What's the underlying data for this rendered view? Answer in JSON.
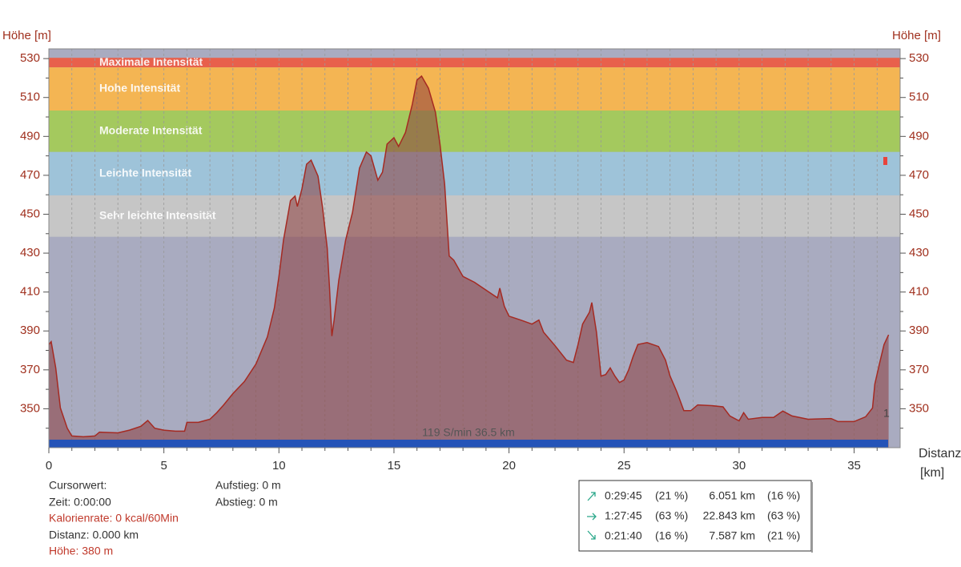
{
  "chart_data": {
    "type": "area",
    "ylabel": "Höhe [m]",
    "xlabel": "Distanz",
    "xunit": "[km]",
    "x": [
      0,
      0.1,
      0.3,
      0.5,
      0.8,
      1.0,
      1.5,
      2.0,
      2.2,
      3.0,
      3.5,
      4.0,
      4.3,
      4.6,
      5.0,
      5.5,
      5.9,
      6.0,
      6.5,
      7.0,
      7.3,
      7.6,
      8.0,
      8.5,
      9.0,
      9.5,
      9.8,
      10.0,
      10.2,
      10.5,
      10.7,
      10.8,
      11.0,
      11.2,
      11.4,
      11.7,
      11.9,
      12.1,
      12.2,
      12.3,
      12.4,
      12.6,
      12.9,
      13.2,
      13.5,
      13.8,
      14.0,
      14.3,
      14.5,
      14.7,
      15.0,
      15.2,
      15.5,
      15.8,
      16.0,
      16.2,
      16.5,
      16.8,
      17.0,
      17.2,
      17.4,
      17.6,
      18.0,
      18.5,
      19.0,
      19.5,
      19.6,
      19.8,
      20.0,
      20.5,
      21.0,
      21.3,
      21.5,
      22.0,
      22.5,
      22.8,
      23.0,
      23.2,
      23.5,
      23.6,
      23.8,
      24.0,
      24.2,
      24.4,
      24.6,
      24.8,
      25.0,
      25.2,
      25.4,
      25.6,
      26.0,
      26.5,
      26.8,
      27.0,
      27.3,
      27.6,
      27.9,
      28.2,
      28.8,
      29.3,
      29.6,
      30.0,
      30.2,
      30.4,
      31.0,
      31.5,
      31.9,
      32.3,
      33.0,
      34.0,
      34.3,
      35.0,
      35.5,
      35.8,
      35.9,
      36.1,
      36.3,
      36.5
    ],
    "values": [
      383,
      384.5,
      371,
      350.4,
      340,
      336,
      335.6,
      336,
      338,
      337.6,
      339,
      341,
      344,
      340,
      339,
      338.5,
      338.5,
      343,
      343,
      344.6,
      348,
      352,
      357.8,
      364,
      373,
      387,
      401.8,
      418,
      436.7,
      457,
      459.3,
      454,
      463,
      475.7,
      477.8,
      469.6,
      453,
      432.6,
      412,
      387.4,
      395.6,
      416,
      436.7,
      451,
      473.7,
      482,
      480,
      467.5,
      471.6,
      486,
      489.3,
      484.8,
      492,
      506.6,
      519,
      521,
      514.8,
      502.5,
      486,
      465.5,
      428.5,
      426.4,
      418,
      415,
      411,
      407,
      412,
      402.6,
      397.6,
      395.6,
      393.5,
      395.6,
      389.4,
      382.4,
      375,
      373.8,
      383,
      393.5,
      399.7,
      404.6,
      389.4,
      366.8,
      367.6,
      371,
      366.8,
      363.5,
      364.8,
      370,
      377,
      383,
      384,
      382,
      375,
      366.8,
      358.6,
      349,
      349,
      352,
      351.6,
      351,
      346.3,
      343.8,
      348,
      344.6,
      345.5,
      345.5,
      348.8,
      346.3,
      344.6,
      345,
      343.4,
      343.4,
      345.9,
      350.4,
      362.7,
      373,
      383,
      388
    ],
    "color": "#a52a22",
    "fill": "rgba(140,60,60,0.55)",
    "xlim": [
      0,
      37
    ],
    "xticks": [
      0,
      5,
      10,
      15,
      20,
      25,
      30,
      35
    ],
    "xminorticks": [
      1,
      2,
      3,
      4,
      6,
      7,
      8,
      9,
      11,
      12,
      13,
      14,
      16,
      17,
      18,
      19,
      21,
      22,
      23,
      24,
      26,
      27,
      28,
      29,
      31,
      32,
      33,
      34,
      36
    ],
    "ylim": [
      330,
      535
    ],
    "yticks": [
      350,
      370,
      390,
      410,
      430,
      450,
      470,
      490,
      510,
      530
    ],
    "yminorticks": [
      340,
      360,
      380,
      400,
      420,
      440,
      460,
      480,
      500,
      520
    ],
    "zones": [
      {
        "name": "Maximale Intensität",
        "from": 525.5,
        "to": 530.4,
        "color": "#e8604c"
      },
      {
        "name": "Hohe Intensität",
        "from": 503.3,
        "to": 525.5,
        "color": "#f4b553"
      },
      {
        "name": "Moderate Intensität",
        "from": 482,
        "to": 503.3,
        "color": "#a4c95e"
      },
      {
        "name": "Leichte Intensität",
        "from": 459.7,
        "to": 482,
        "color": "#9ec3d9"
      },
      {
        "name": "Sehr leichte Intensität",
        "from": 438.4,
        "to": 459.7,
        "color": "#c6c6c6"
      }
    ],
    "annotation": "119 S/min 36.5 km",
    "marker_label": "1"
  },
  "info": {
    "cursor": "Cursorwert:",
    "time": "Zeit: 0:00:00",
    "calories": "Kalorienrate: 0 kcal/60Min",
    "distance": "Distanz: 0.000 km",
    "height": "Höhe:  380 m",
    "ascent": "Aufstieg: 0 m",
    "descent": "Abstieg: 0 m"
  },
  "stats": {
    "rows": [
      [
        "0:29:45",
        "(21 %)",
        "6.051 km",
        "(16 %)"
      ],
      [
        "1:27:45",
        "(63 %)",
        "22.843 km",
        "(63 %)"
      ],
      [
        "0:21:40",
        "(16 %)",
        "7.587 km",
        "(21 %)"
      ]
    ]
  }
}
